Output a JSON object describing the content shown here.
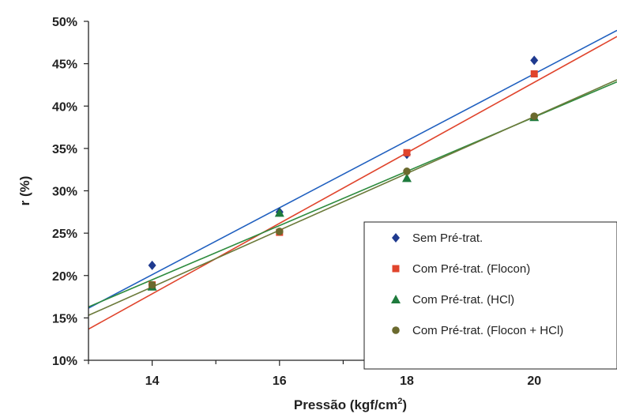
{
  "chart_data": {
    "type": "scatter",
    "xlabel": "Pressão (kgf/cm",
    "xlabel_sup": "2",
    "xlabel_suffix": ")",
    "ylabel": "r (%)",
    "xlim": [
      13,
      21.3
    ],
    "ylim": [
      10,
      50
    ],
    "x_ticks": [
      14,
      16,
      18,
      20
    ],
    "y_ticks": [
      10,
      15,
      20,
      25,
      30,
      35,
      40,
      45,
      50
    ],
    "y_tick_format": "percent",
    "grid": false,
    "legend_position": "bottom-right",
    "series": [
      {
        "name": "Sem Pré-trat.",
        "marker": "diamond",
        "color": "#1f3a8f",
        "line_color": "#1f5fbf",
        "x": [
          14,
          16,
          18,
          20
        ],
        "y": [
          21.2,
          27.5,
          34.3,
          45.4
        ],
        "fit": {
          "slope": 3.95,
          "intercept": -35.2
        }
      },
      {
        "name": "Com Pré-trat. (Flocon)",
        "marker": "square",
        "color": "#e0442c",
        "line_color": "#e0442c",
        "x": [
          14,
          16,
          18,
          20
        ],
        "y": [
          18.9,
          25.1,
          34.5,
          43.8
        ],
        "fit": {
          "slope": 4.16,
          "intercept": -40.4
        }
      },
      {
        "name": "Com Pré-trat. (HCl)",
        "marker": "triangle",
        "color": "#1e7a3c",
        "line_color": "#2e8b3e",
        "x": [
          14,
          16,
          18,
          20
        ],
        "y": [
          18.7,
          27.4,
          31.5,
          38.7
        ],
        "fit": {
          "slope": 3.2,
          "intercept": -25.3
        }
      },
      {
        "name": "Com Pré-trat. (Flocon + HCl)",
        "marker": "circle",
        "color": "#6b6a2e",
        "line_color": "#6b7a3a",
        "x": [
          14,
          16,
          18,
          20
        ],
        "y": [
          18.9,
          25.2,
          32.3,
          38.8
        ],
        "fit": {
          "slope": 3.35,
          "intercept": -28.25
        }
      }
    ]
  }
}
